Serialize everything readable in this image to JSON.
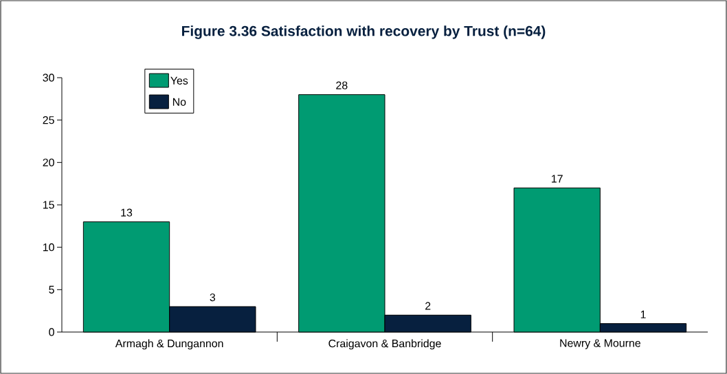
{
  "chart_data": {
    "type": "bar",
    "title": "Figure 3.36 Satisfaction with recovery by Trust  (n=64)",
    "categories": [
      "Armagh & Dungannon",
      "Craigavon & Banbridge",
      "Newry & Mourne"
    ],
    "series": [
      {
        "name": "Yes",
        "color": "#009b72",
        "values": [
          13,
          28,
          17
        ]
      },
      {
        "name": "No",
        "color": "#07203f",
        "values": [
          3,
          2,
          1
        ]
      }
    ],
    "ylim": [
      0,
      30
    ],
    "yticks": [
      0,
      5,
      10,
      15,
      20,
      25,
      30
    ],
    "data_labels": true,
    "legend": "top left",
    "grid": false
  }
}
